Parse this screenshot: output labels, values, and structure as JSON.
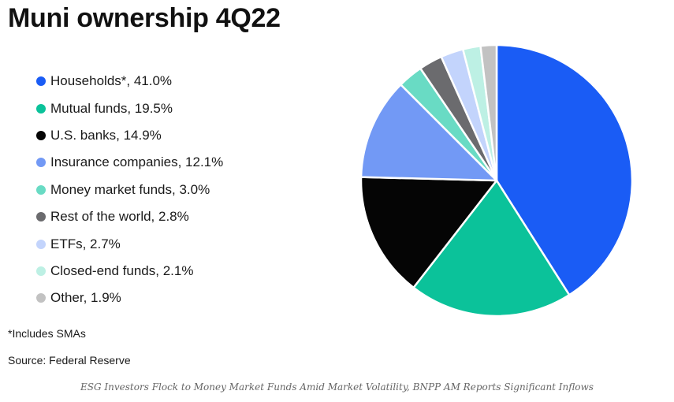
{
  "chart_data": {
    "type": "pie",
    "title": "Muni ownership 4Q22",
    "slices": [
      {
        "label": "Households*",
        "value": 41.0,
        "display": "Households*, 41.0%",
        "color": "#1a5cf5"
      },
      {
        "label": "Mutual funds",
        "value": 19.5,
        "display": "Mutual funds, 19.5%",
        "color": "#0bc29a"
      },
      {
        "label": "U.S. banks",
        "value": 14.9,
        "display": "U.S. banks, 14.9%",
        "color": "#050505"
      },
      {
        "label": "Insurance companies",
        "value": 12.1,
        "display": "Insurance companies, 12.1%",
        "color": "#7299f5"
      },
      {
        "label": "Money market funds",
        "value": 3.0,
        "display": "Money market funds, 3.0%",
        "color": "#69dbc4"
      },
      {
        "label": "Rest of the world",
        "value": 2.8,
        "display": "Rest of the world, 2.8%",
        "color": "#6b6b6e"
      },
      {
        "label": "ETFs",
        "value": 2.7,
        "display": "ETFs, 2.7%",
        "color": "#c3d4fc"
      },
      {
        "label": "Closed-end funds",
        "value": 2.1,
        "display": "Closed-end funds, 2.1%",
        "color": "#bdf0e4"
      },
      {
        "label": "Other",
        "value": 1.9,
        "display": "Other, 1.9%",
        "color": "#c2c2c2"
      }
    ],
    "start_angle_deg": 0,
    "direction": "clockwise",
    "legend_position": "left"
  },
  "notes": {
    "footnote": "*Includes SMAs",
    "source": "Source: Federal Reserve",
    "caption": "ESG Investors Flock to Money Market Funds Amid Market Volatility, BNPP AM Reports Significant Inflows"
  }
}
